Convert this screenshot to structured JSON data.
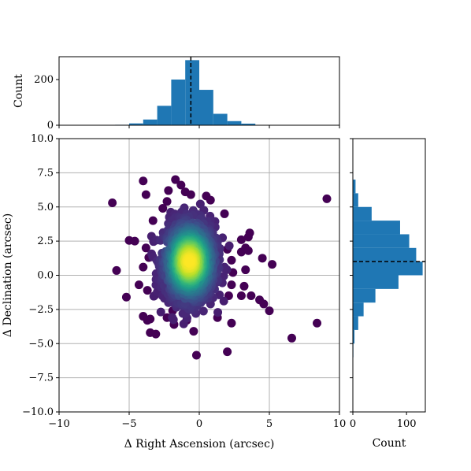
{
  "chart_data": {
    "type": "scatter",
    "main": {
      "xlabel": "Δ Right Ascension (arcsec)",
      "ylabel": "Δ Declination (arcsec)",
      "xlim": [
        -10,
        10
      ],
      "ylim": [
        -10,
        10
      ],
      "xticks": [
        -10,
        -5,
        0,
        5,
        10
      ],
      "xtick_labels": [
        "−10",
        "−5",
        "0",
        "5",
        "10"
      ],
      "yticks": [
        -10,
        -7.5,
        -5,
        -2.5,
        0,
        2.5,
        5,
        7.5,
        10
      ],
      "ytick_labels": [
        "−10.0",
        "−7.5",
        "−5.0",
        "−2.5",
        "0.0",
        "2.5",
        "5.0",
        "7.5",
        "10.0"
      ],
      "grid": true,
      "colormap": "viridis (point density)",
      "cluster_center": [
        -0.7,
        1.0
      ],
      "outliers": [
        [
          -6.2,
          5.3
        ],
        [
          -5.9,
          0.35
        ],
        [
          -5.2,
          -1.6
        ],
        [
          -5.0,
          2.55
        ],
        [
          -4.6,
          2.5
        ],
        [
          -4.3,
          -0.7
        ],
        [
          -4.0,
          6.9
        ],
        [
          -4.0,
          -3.0
        ],
        [
          -3.7,
          -3.3
        ],
        [
          -3.5,
          -3.2
        ],
        [
          -3.5,
          -4.2
        ],
        [
          -3.8,
          5.9
        ],
        [
          -3.8,
          2.0
        ],
        [
          -4.0,
          0.6
        ],
        [
          -3.6,
          1.3
        ],
        [
          -3.7,
          -1.1
        ],
        [
          -3.3,
          4.0
        ],
        [
          -3.2,
          -1.5
        ],
        [
          -3.1,
          -4.3
        ],
        [
          -2.2,
          6.2
        ],
        [
          -2.3,
          5.4
        ],
        [
          -2.6,
          4.9
        ],
        [
          -2.3,
          -3.1
        ],
        [
          -1.9,
          -2.6
        ],
        [
          -1.8,
          -3.6
        ],
        [
          -1.7,
          7.0
        ],
        [
          -1.3,
          6.6
        ],
        [
          -1.0,
          6.1
        ],
        [
          -0.6,
          5.9
        ],
        [
          -0.9,
          -3.3
        ],
        [
          -0.4,
          -4.1
        ],
        [
          -0.2,
          -5.85
        ],
        [
          0.5,
          5.8
        ],
        [
          0.8,
          5.5
        ],
        [
          1.3,
          -3.1
        ],
        [
          1.8,
          4.5
        ],
        [
          2.0,
          -5.6
        ],
        [
          2.3,
          -3.5
        ],
        [
          2.0,
          1.9
        ],
        [
          2.3,
          1.1
        ],
        [
          2.4,
          0.2
        ],
        [
          2.3,
          -0.7
        ],
        [
          2.1,
          -1.5
        ],
        [
          3.0,
          2.6
        ],
        [
          3.0,
          1.7
        ],
        [
          3.3,
          2.0
        ],
        [
          3.3,
          0.4
        ],
        [
          3.6,
          3.1
        ],
        [
          3.5,
          2.8
        ],
        [
          3.5,
          1.8
        ],
        [
          3.2,
          -0.8
        ],
        [
          3.0,
          -1.5
        ],
        [
          3.7,
          -1.5
        ],
        [
          4.3,
          -1.8
        ],
        [
          4.6,
          -2.1
        ],
        [
          4.5,
          1.25
        ],
        [
          5.0,
          -2.6
        ],
        [
          5.2,
          0.8
        ],
        [
          6.6,
          -4.6
        ],
        [
          8.4,
          -3.5
        ],
        [
          9.1,
          5.6
        ]
      ]
    },
    "top_histogram": {
      "type": "bar",
      "ylabel": "Count",
      "ylim": [
        0,
        300
      ],
      "yticks": [
        0,
        200
      ],
      "ytick_labels": [
        "0",
        "200"
      ],
      "bin_edges": [
        -6,
        -5,
        -4,
        -3,
        -2,
        -1,
        0,
        1,
        2,
        3,
        4,
        5
      ],
      "values": [
        2,
        8,
        25,
        85,
        200,
        285,
        155,
        50,
        18,
        7,
        1
      ],
      "median_line": -0.6
    },
    "right_histogram": {
      "type": "bar",
      "xlabel": "Count",
      "xlim": [
        0,
        135
      ],
      "xticks": [
        0,
        100
      ],
      "xtick_labels": [
        "0",
        "100"
      ],
      "bin_edges": [
        -6,
        -5,
        -4,
        -3,
        -2,
        -1,
        0,
        1,
        2,
        3,
        4,
        5,
        6,
        7
      ],
      "values": [
        1,
        3,
        10,
        20,
        42,
        85,
        130,
        118,
        105,
        88,
        35,
        10,
        5
      ],
      "median_line": 1.0
    },
    "colors": {
      "bar": "#1f77b4",
      "outlier": "#440154",
      "median_line": "#000000"
    }
  }
}
